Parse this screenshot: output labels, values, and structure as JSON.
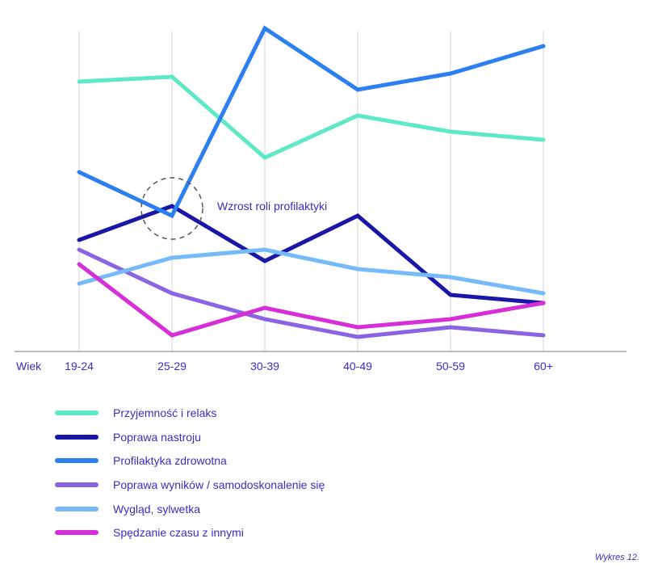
{
  "chart_data": {
    "type": "line",
    "xlabel": "Wiek",
    "categories": [
      "19-24",
      "25-29",
      "30-39",
      "40-49",
      "50-59",
      "60+"
    ],
    "ylim": [
      0,
      100
    ],
    "grid": "vertical",
    "legend_placement": "bottom",
    "series": [
      {
        "name": "Przyjemność i relaks",
        "color": "#5ee8c6",
        "values": [
          83.5,
          85,
          60,
          73,
          68,
          65.5
        ]
      },
      {
        "name": "Poprawa nastroju",
        "color": "#1a17a6",
        "values": [
          34.5,
          45,
          28,
          42,
          17.5,
          15
        ]
      },
      {
        "name": "Profilaktyka zdrowotna",
        "color": "#2c7ff0",
        "values": [
          55.5,
          42,
          100,
          81,
          86,
          94.5
        ]
      },
      {
        "name": "Poprawa wyników / samodoskonalenie się",
        "color": "#8a64e2",
        "values": [
          31.5,
          18,
          10,
          4.5,
          7.5,
          5
        ]
      },
      {
        "name": "Wygląd, sylwetka",
        "color": "#75baf9",
        "values": [
          21,
          29,
          31.5,
          25.5,
          23,
          18
        ]
      },
      {
        "name": "Spędzanie czasu z innymi",
        "color": "#d62fd8",
        "values": [
          27,
          5,
          13.5,
          7.5,
          10,
          15
        ]
      }
    ],
    "annotation": {
      "text": "Wzrost roli profilaktyki",
      "category": "25-29"
    }
  },
  "caption": "Wykres 12."
}
